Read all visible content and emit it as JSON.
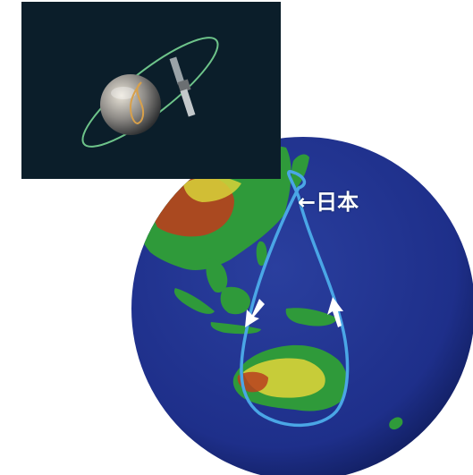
{
  "colors": {
    "ocean": "#1e2f8a",
    "ocean_dark": "#0e1a55",
    "orbit_track": "#4aa6e6",
    "land_green": "#2f9a3a",
    "land_yellow": "#d8d23a",
    "land_red": "#b8401e",
    "inset_bg": "#0b1e2a",
    "inset_orbit": "#6ec48a",
    "arrow": "#ffffff"
  },
  "icons": {
    "satellite": "satellite-icon",
    "direction_arrows": "arrow-icon"
  },
  "labels": {
    "japan": "←日本"
  }
}
